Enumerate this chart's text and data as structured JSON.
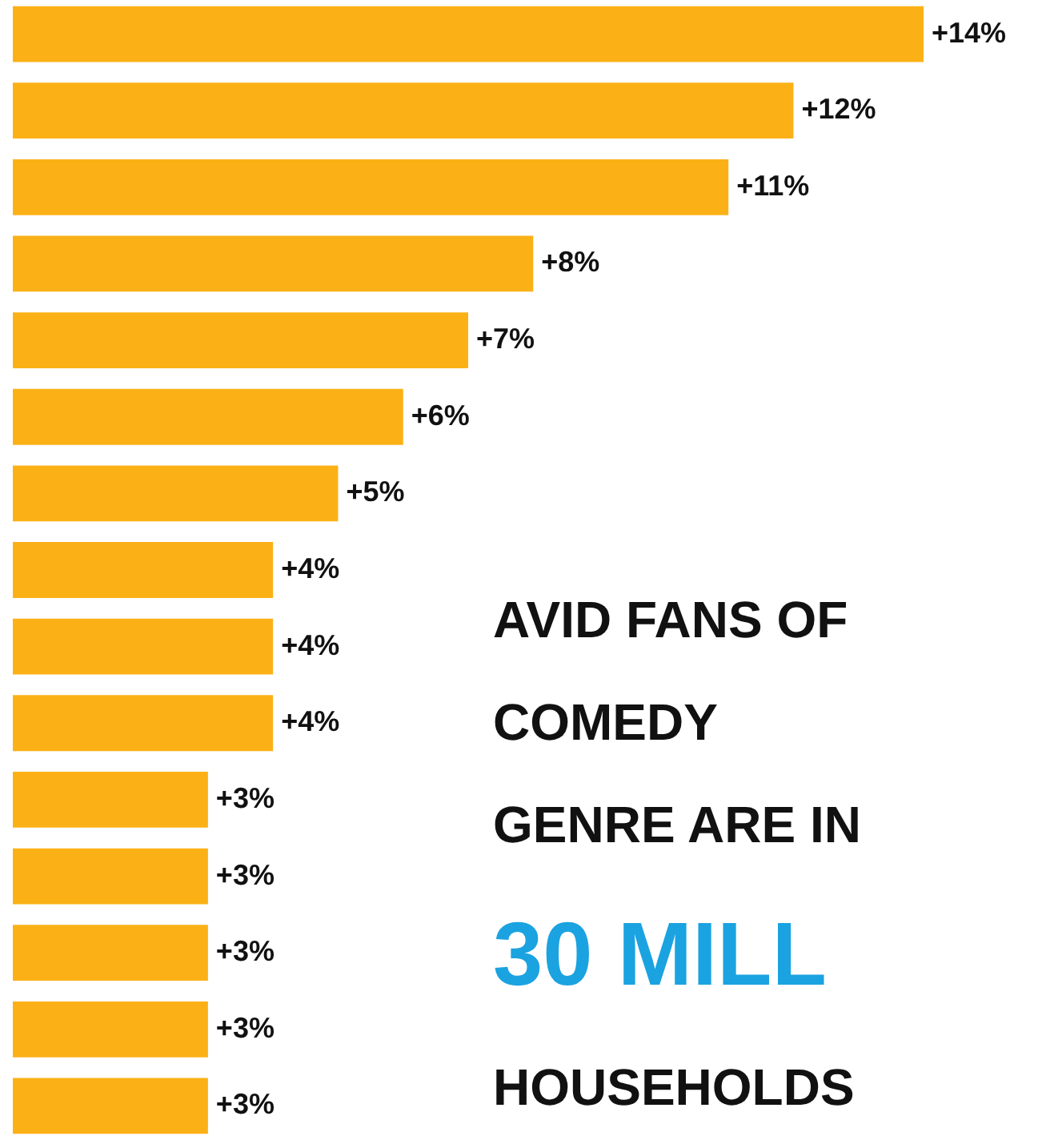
{
  "chart_data": {
    "type": "bar",
    "orientation": "horizontal",
    "categories": [
      null,
      null,
      null,
      null,
      null,
      null,
      null,
      null,
      null,
      null,
      null,
      null,
      null,
      null,
      null
    ],
    "values": [
      14,
      12,
      11,
      8,
      7,
      6,
      5,
      4,
      4,
      4,
      3,
      3,
      3,
      3,
      3
    ],
    "value_labels": [
      "+14%",
      "+12%",
      "+11%",
      "+8%",
      "+7%",
      "+6%",
      "+5%",
      "+4%",
      "+4%",
      "+4%",
      "+3%",
      "+3%",
      "+3%",
      "+3%",
      "+3%"
    ],
    "color": "#fbb116",
    "tick_labels": false,
    "annotations": [
      "AVID FANS OF",
      "COMEDY",
      "GENRE ARE IN",
      "30 MILL",
      "HOUSEHOLDS"
    ]
  }
}
